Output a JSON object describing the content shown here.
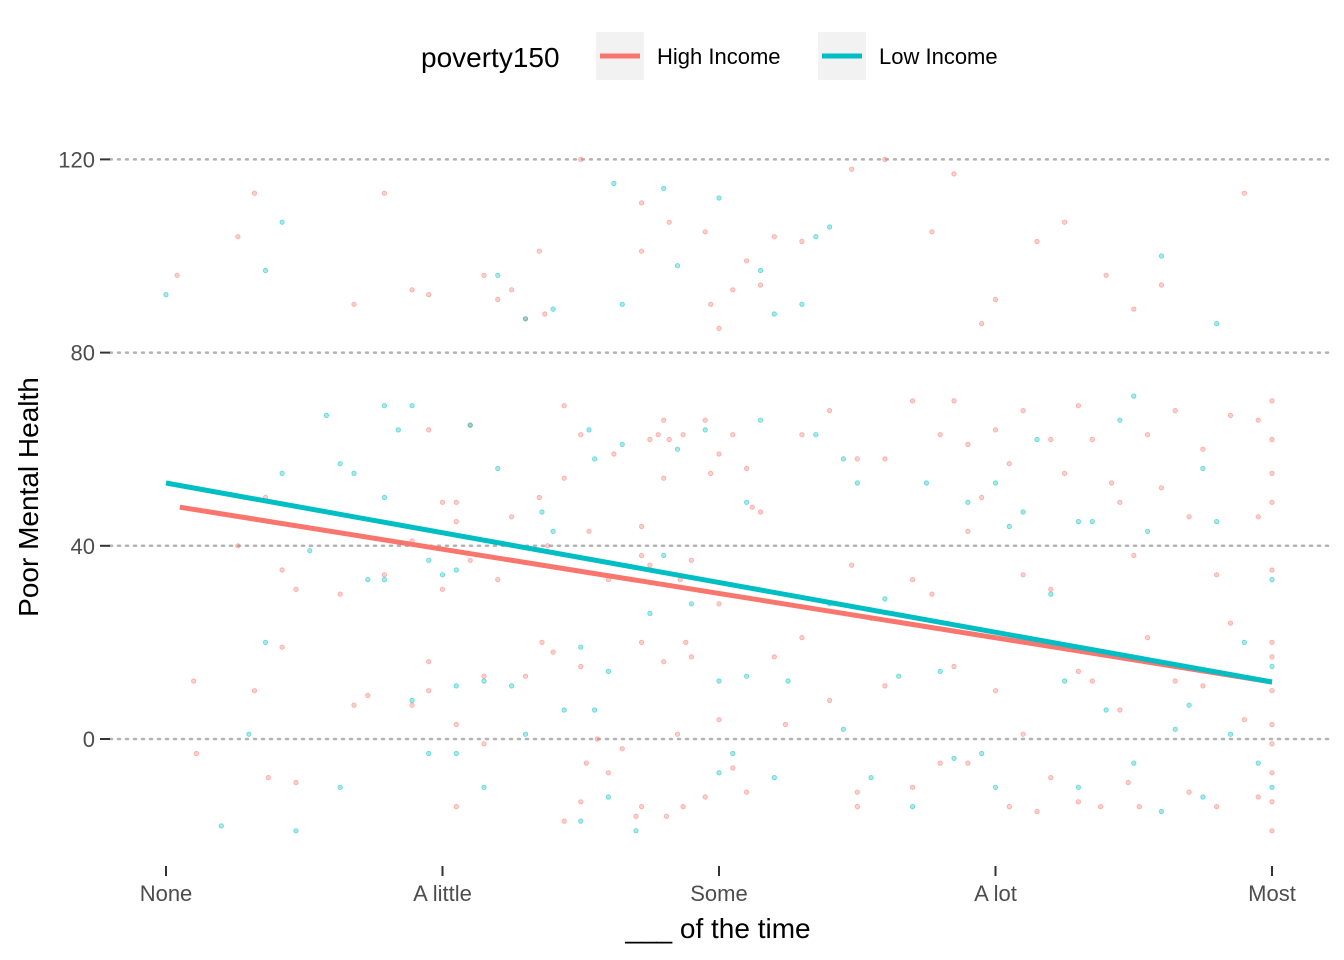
{
  "chart_data": {
    "type": "scatter",
    "title": "",
    "xlabel": "___ of the time",
    "ylabel": "Poor Mental Health",
    "categories": [
      "None",
      "A little",
      "Some",
      "A lot",
      "Most"
    ],
    "xlim": [
      -0.17,
      4.17
    ],
    "ylim": [
      -26,
      128
    ],
    "yticks": [
      0,
      40,
      80,
      120
    ],
    "grid": "horizontal dotted",
    "legend": {
      "title": "poverty150",
      "position": "top",
      "entries": [
        "High Income",
        "Low Income"
      ]
    },
    "series": [
      {
        "name": "High Income",
        "color": "#F8766D",
        "fit_line": [
          [
            0.05,
            48.0
          ],
          [
            4.0,
            11.8
          ]
        ],
        "points": [
          [
            0.04,
            96
          ],
          [
            0.1,
            12
          ],
          [
            0.11,
            -3
          ],
          [
            0.26,
            104
          ],
          [
            0.26,
            40
          ],
          [
            0.32,
            113
          ],
          [
            0.32,
            10
          ],
          [
            0.36,
            50
          ],
          [
            0.37,
            -8
          ],
          [
            0.42,
            19
          ],
          [
            0.42,
            35
          ],
          [
            0.47,
            31
          ],
          [
            0.47,
            -9
          ],
          [
            0.63,
            30
          ],
          [
            0.68,
            90
          ],
          [
            0.68,
            7
          ],
          [
            0.73,
            9
          ],
          [
            0.79,
            113
          ],
          [
            0.79,
            34
          ],
          [
            0.89,
            93
          ],
          [
            0.89,
            41
          ],
          [
            0.89,
            7
          ],
          [
            0.95,
            92
          ],
          [
            0.95,
            64
          ],
          [
            0.95,
            16
          ],
          [
            0.95,
            10
          ],
          [
            1.0,
            49
          ],
          [
            1.0,
            31
          ],
          [
            1.05,
            49
          ],
          [
            1.05,
            45
          ],
          [
            1.05,
            3
          ],
          [
            1.05,
            -14
          ],
          [
            1.1,
            65
          ],
          [
            1.1,
            37
          ],
          [
            1.15,
            96
          ],
          [
            1.15,
            13
          ],
          [
            1.15,
            -1
          ],
          [
            1.2,
            91
          ],
          [
            1.2,
            33
          ],
          [
            1.25,
            93
          ],
          [
            1.25,
            46
          ],
          [
            1.3,
            87
          ],
          [
            1.3,
            13
          ],
          [
            1.35,
            101
          ],
          [
            1.35,
            50
          ],
          [
            1.36,
            20
          ],
          [
            1.37,
            88
          ],
          [
            1.38,
            40
          ],
          [
            1.4,
            18
          ],
          [
            1.44,
            69
          ],
          [
            1.44,
            54
          ],
          [
            1.44,
            -17
          ],
          [
            1.5,
            120
          ],
          [
            1.5,
            63
          ],
          [
            1.5,
            15
          ],
          [
            1.5,
            -13
          ],
          [
            1.52,
            -5
          ],
          [
            1.53,
            43
          ],
          [
            1.56,
            0
          ],
          [
            1.6,
            33
          ],
          [
            1.6,
            -7
          ],
          [
            1.62,
            59
          ],
          [
            1.65,
            -2
          ],
          [
            1.7,
            -16
          ],
          [
            1.72,
            111
          ],
          [
            1.72,
            101
          ],
          [
            1.72,
            44
          ],
          [
            1.72,
            38
          ],
          [
            1.72,
            20
          ],
          [
            1.72,
            -14
          ],
          [
            1.75,
            62
          ],
          [
            1.75,
            36
          ],
          [
            1.78,
            63
          ],
          [
            1.8,
            66
          ],
          [
            1.8,
            54
          ],
          [
            1.8,
            16
          ],
          [
            1.81,
            -16
          ],
          [
            1.82,
            107
          ],
          [
            1.82,
            62
          ],
          [
            1.85,
            1
          ],
          [
            1.86,
            33
          ],
          [
            1.87,
            63
          ],
          [
            1.87,
            -14
          ],
          [
            1.88,
            20
          ],
          [
            1.9,
            37
          ],
          [
            1.9,
            17
          ],
          [
            1.95,
            105
          ],
          [
            1.95,
            66
          ],
          [
            1.95,
            -12
          ],
          [
            1.97,
            90
          ],
          [
            1.97,
            55
          ],
          [
            2.0,
            85
          ],
          [
            2.0,
            59
          ],
          [
            2.0,
            28
          ],
          [
            2.0,
            4
          ],
          [
            2.05,
            93
          ],
          [
            2.05,
            63
          ],
          [
            2.05,
            -6
          ],
          [
            2.1,
            99
          ],
          [
            2.1,
            56
          ],
          [
            2.1,
            -11
          ],
          [
            2.12,
            48
          ],
          [
            2.15,
            94
          ],
          [
            2.15,
            47
          ],
          [
            2.2,
            104
          ],
          [
            2.2,
            17
          ],
          [
            2.24,
            3
          ],
          [
            2.3,
            103
          ],
          [
            2.3,
            63
          ],
          [
            2.3,
            21
          ],
          [
            2.4,
            68
          ],
          [
            2.4,
            8
          ],
          [
            2.48,
            118
          ],
          [
            2.48,
            36
          ],
          [
            2.5,
            58
          ],
          [
            2.5,
            -11
          ],
          [
            2.5,
            -14
          ],
          [
            2.55,
            25
          ],
          [
            2.6,
            120
          ],
          [
            2.6,
            58
          ],
          [
            2.6,
            11
          ],
          [
            2.7,
            70
          ],
          [
            2.7,
            33
          ],
          [
            2.7,
            -10
          ],
          [
            2.77,
            105
          ],
          [
            2.77,
            30
          ],
          [
            2.8,
            63
          ],
          [
            2.8,
            -5
          ],
          [
            2.85,
            117
          ],
          [
            2.85,
            70
          ],
          [
            2.85,
            15
          ],
          [
            2.9,
            61
          ],
          [
            2.9,
            43
          ],
          [
            2.9,
            -5
          ],
          [
            2.95,
            86
          ],
          [
            2.95,
            50
          ],
          [
            3.0,
            91
          ],
          [
            3.0,
            64
          ],
          [
            3.0,
            10
          ],
          [
            3.05,
            57
          ],
          [
            3.05,
            -14
          ],
          [
            3.1,
            68
          ],
          [
            3.1,
            34
          ],
          [
            3.1,
            1
          ],
          [
            3.15,
            103
          ],
          [
            3.15,
            -15
          ],
          [
            3.2,
            62
          ],
          [
            3.2,
            31
          ],
          [
            3.2,
            -8
          ],
          [
            3.25,
            107
          ],
          [
            3.25,
            55
          ],
          [
            3.3,
            69
          ],
          [
            3.3,
            14
          ],
          [
            3.3,
            -13
          ],
          [
            3.35,
            62
          ],
          [
            3.35,
            12
          ],
          [
            3.38,
            -14
          ],
          [
            3.4,
            96
          ],
          [
            3.42,
            53
          ],
          [
            3.45,
            49
          ],
          [
            3.45,
            6
          ],
          [
            3.48,
            -9
          ],
          [
            3.5,
            89
          ],
          [
            3.5,
            38
          ],
          [
            3.52,
            -14
          ],
          [
            3.55,
            63
          ],
          [
            3.55,
            21
          ],
          [
            3.6,
            94
          ],
          [
            3.6,
            52
          ],
          [
            3.65,
            68
          ],
          [
            3.65,
            12
          ],
          [
            3.7,
            46
          ],
          [
            3.7,
            -11
          ],
          [
            3.75,
            60
          ],
          [
            3.75,
            11
          ],
          [
            3.8,
            34
          ],
          [
            3.8,
            -14
          ],
          [
            3.85,
            67
          ],
          [
            3.85,
            24
          ],
          [
            3.9,
            113
          ],
          [
            3.9,
            4
          ],
          [
            3.95,
            66
          ],
          [
            3.95,
            46
          ],
          [
            3.95,
            -12
          ],
          [
            4.0,
            70
          ],
          [
            4.0,
            62
          ],
          [
            4.0,
            55
          ],
          [
            4.0,
            49
          ],
          [
            4.0,
            35
          ],
          [
            4.0,
            20
          ],
          [
            4.0,
            17
          ],
          [
            4.0,
            10
          ],
          [
            4.0,
            3
          ],
          [
            4.0,
            -1
          ],
          [
            4.0,
            -7
          ],
          [
            4.0,
            -13
          ],
          [
            4.0,
            -19
          ]
        ]
      },
      {
        "name": "Low Income",
        "color": "#00BFC4",
        "fit_line": [
          [
            0.0,
            53.0
          ],
          [
            4.0,
            11.8
          ]
        ],
        "points": [
          [
            0.0,
            92
          ],
          [
            0.2,
            -18
          ],
          [
            0.3,
            1
          ],
          [
            0.36,
            97
          ],
          [
            0.36,
            20
          ],
          [
            0.42,
            107
          ],
          [
            0.42,
            55
          ],
          [
            0.47,
            -19
          ],
          [
            0.52,
            39
          ],
          [
            0.58,
            67
          ],
          [
            0.63,
            -10
          ],
          [
            0.63,
            57
          ],
          [
            0.68,
            55
          ],
          [
            0.73,
            33
          ],
          [
            0.79,
            69
          ],
          [
            0.79,
            50
          ],
          [
            0.79,
            33
          ],
          [
            0.84,
            64
          ],
          [
            0.89,
            69
          ],
          [
            0.89,
            8
          ],
          [
            0.95,
            37
          ],
          [
            0.95,
            -3
          ],
          [
            1.0,
            34
          ],
          [
            1.05,
            35
          ],
          [
            1.05,
            11
          ],
          [
            1.05,
            -3
          ],
          [
            1.1,
            65
          ],
          [
            1.15,
            12
          ],
          [
            1.15,
            -10
          ],
          [
            1.2,
            96
          ],
          [
            1.2,
            56
          ],
          [
            1.25,
            11
          ],
          [
            1.3,
            87
          ],
          [
            1.3,
            1
          ],
          [
            1.36,
            47
          ],
          [
            1.4,
            89
          ],
          [
            1.4,
            43
          ],
          [
            1.44,
            6
          ],
          [
            1.5,
            19
          ],
          [
            1.5,
            -17
          ],
          [
            1.53,
            64
          ],
          [
            1.55,
            58
          ],
          [
            1.55,
            6
          ],
          [
            1.6,
            14
          ],
          [
            1.6,
            -12
          ],
          [
            1.62,
            115
          ],
          [
            1.65,
            90
          ],
          [
            1.65,
            61
          ],
          [
            1.7,
            -19
          ],
          [
            1.75,
            26
          ],
          [
            1.8,
            114
          ],
          [
            1.8,
            38
          ],
          [
            1.85,
            98
          ],
          [
            1.85,
            60
          ],
          [
            1.9,
            28
          ],
          [
            1.95,
            64
          ],
          [
            2.0,
            112
          ],
          [
            2.0,
            12
          ],
          [
            2.0,
            -7
          ],
          [
            2.05,
            -3
          ],
          [
            2.1,
            49
          ],
          [
            2.1,
            13
          ],
          [
            2.15,
            97
          ],
          [
            2.15,
            66
          ],
          [
            2.2,
            88
          ],
          [
            2.2,
            -8
          ],
          [
            2.25,
            12
          ],
          [
            2.3,
            90
          ],
          [
            2.35,
            104
          ],
          [
            2.35,
            63
          ],
          [
            2.4,
            106
          ],
          [
            2.4,
            28
          ],
          [
            2.45,
            58
          ],
          [
            2.45,
            2
          ],
          [
            2.5,
            53
          ],
          [
            2.55,
            -8
          ],
          [
            2.6,
            29
          ],
          [
            2.65,
            13
          ],
          [
            2.7,
            -14
          ],
          [
            2.75,
            53
          ],
          [
            2.8,
            14
          ],
          [
            2.85,
            -4
          ],
          [
            2.9,
            49
          ],
          [
            2.95,
            -3
          ],
          [
            3.0,
            53
          ],
          [
            3.0,
            -10
          ],
          [
            3.05,
            44
          ],
          [
            3.1,
            47
          ],
          [
            3.15,
            62
          ],
          [
            3.2,
            30
          ],
          [
            3.25,
            12
          ],
          [
            3.3,
            45
          ],
          [
            3.3,
            -10
          ],
          [
            3.35,
            45
          ],
          [
            3.4,
            6
          ],
          [
            3.45,
            66
          ],
          [
            3.5,
            71
          ],
          [
            3.5,
            -5
          ],
          [
            3.55,
            43
          ],
          [
            3.6,
            100
          ],
          [
            3.6,
            -15
          ],
          [
            3.65,
            2
          ],
          [
            3.7,
            7
          ],
          [
            3.75,
            56
          ],
          [
            3.75,
            -12
          ],
          [
            3.8,
            86
          ],
          [
            3.8,
            45
          ],
          [
            3.85,
            1
          ],
          [
            3.9,
            20
          ],
          [
            3.95,
            -5
          ],
          [
            4.0,
            33
          ],
          [
            4.0,
            15
          ],
          [
            4.0,
            -10
          ]
        ]
      }
    ]
  }
}
